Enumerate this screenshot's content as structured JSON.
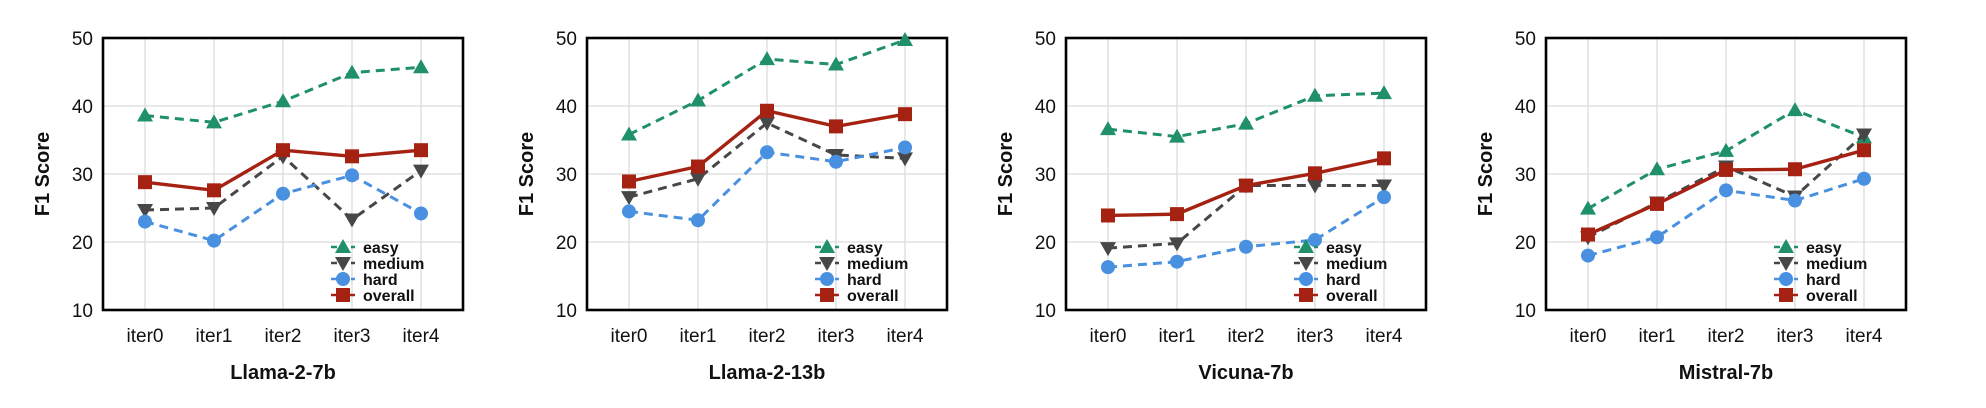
{
  "chart_data": [
    {
      "type": "line",
      "title": "",
      "xlabel": "Llama-2-7b",
      "ylabel": "F1 Score",
      "ylim": [
        10,
        50
      ],
      "yticks": [
        10,
        20,
        30,
        40,
        50
      ],
      "categories": [
        "iter0",
        "iter1",
        "iter2",
        "iter3",
        "iter4"
      ],
      "legend_position": "bottom-right",
      "series": [
        {
          "name": "easy",
          "values": [
            38.6,
            37.6,
            40.7,
            44.9,
            45.7
          ]
        },
        {
          "name": "medium",
          "values": [
            24.7,
            25.0,
            32.6,
            23.3,
            30.5
          ]
        },
        {
          "name": "hard",
          "values": [
            23.0,
            20.2,
            27.1,
            29.8,
            24.2
          ]
        },
        {
          "name": "overall",
          "values": [
            28.8,
            27.6,
            33.5,
            32.6,
            33.5
          ]
        }
      ]
    },
    {
      "type": "line",
      "title": "",
      "xlabel": "Llama-2-13b",
      "ylabel": "F1 Score",
      "ylim": [
        10,
        50
      ],
      "yticks": [
        10,
        20,
        30,
        40,
        50
      ],
      "categories": [
        "iter0",
        "iter1",
        "iter2",
        "iter3",
        "iter4"
      ],
      "legend_position": "bottom-right",
      "series": [
        {
          "name": "easy",
          "values": [
            35.8,
            40.8,
            46.9,
            46.1,
            49.7
          ]
        },
        {
          "name": "medium",
          "values": [
            26.6,
            29.3,
            37.5,
            32.8,
            32.3
          ]
        },
        {
          "name": "hard",
          "values": [
            24.5,
            23.2,
            33.2,
            31.8,
            33.9
          ]
        },
        {
          "name": "overall",
          "values": [
            28.9,
            31.1,
            39.3,
            37.0,
            38.8
          ]
        }
      ]
    },
    {
      "type": "line",
      "title": "",
      "xlabel": "Vicuna-7b",
      "ylabel": "F1 Score",
      "ylim": [
        10,
        50
      ],
      "yticks": [
        10,
        20,
        30,
        40,
        50
      ],
      "categories": [
        "iter0",
        "iter1",
        "iter2",
        "iter3",
        "iter4"
      ],
      "legend_position": "bottom-right",
      "series": [
        {
          "name": "easy",
          "values": [
            36.6,
            35.5,
            37.4,
            41.5,
            41.9
          ]
        },
        {
          "name": "medium",
          "values": [
            19.1,
            19.8,
            28.3,
            28.3,
            28.3
          ]
        },
        {
          "name": "hard",
          "values": [
            16.3,
            17.1,
            19.3,
            20.3,
            26.6
          ]
        },
        {
          "name": "overall",
          "values": [
            23.9,
            24.1,
            28.3,
            30.1,
            32.3
          ]
        }
      ]
    },
    {
      "type": "line",
      "title": "",
      "xlabel": "Mistral-7b",
      "ylabel": "F1 Score",
      "ylim": [
        10,
        50
      ],
      "yticks": [
        10,
        20,
        30,
        40,
        50
      ],
      "categories": [
        "iter0",
        "iter1",
        "iter2",
        "iter3",
        "iter4"
      ],
      "legend_position": "bottom-right",
      "series": [
        {
          "name": "easy",
          "values": [
            24.9,
            30.7,
            33.4,
            39.4,
            35.4
          ]
        },
        {
          "name": "medium",
          "values": [
            20.7,
            25.8,
            31.1,
            26.7,
            35.8
          ]
        },
        {
          "name": "hard",
          "values": [
            18.0,
            20.7,
            27.6,
            26.1,
            29.3
          ]
        },
        {
          "name": "overall",
          "values": [
            21.1,
            25.6,
            30.6,
            30.7,
            33.5
          ]
        }
      ]
    }
  ],
  "style": {
    "colors": {
      "easy": "#1f9068",
      "medium": "#474747",
      "hard": "#4a90e0",
      "overall": "#a52212"
    },
    "markers": {
      "easy": "triangle-up",
      "medium": "triangle-down",
      "hard": "circle",
      "overall": "square"
    },
    "dashes": {
      "easy": "dashed",
      "medium": "dashed",
      "hard": "dashed",
      "overall": "solid"
    }
  }
}
